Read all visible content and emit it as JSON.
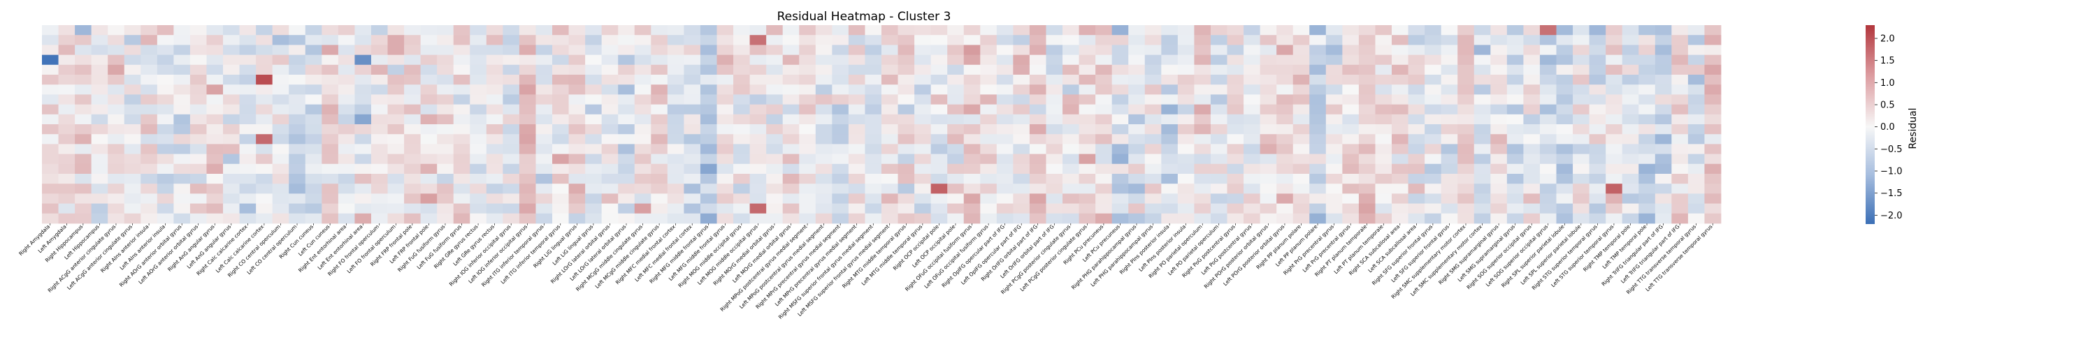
{
  "chart_data": {
    "type": "heatmap",
    "title": "Residual Heatmap - Cluster 3",
    "colormap": "diverging-blue-white-red",
    "colors": {
      "negative": "#3b6fb6",
      "neutral": "#f7f7f7",
      "positive": "#b2363c"
    },
    "value_range": [
      -2.2,
      2.3
    ],
    "colorbar": {
      "label": "Residual",
      "ticks": [
        "2.0",
        "1.5",
        "1.0",
        "0.5",
        "0.0",
        "−0.5",
        "−1.0",
        "−1.5",
        "−2.0"
      ],
      "tick_values": [
        2.0,
        1.5,
        1.0,
        0.5,
        0.0,
        -0.5,
        -1.0,
        -1.5,
        -2.0
      ],
      "placement": "right"
    },
    "n_rows": 20,
    "x_labels": [
      "Right Amygdala",
      "Left Amygdala",
      "Right Hippocampus",
      "Left Hippocampus",
      "Right ACgG anterior cingulate gyrus",
      "Left ACgG anterior cingulate gyrus",
      "Right AIns anterior insula",
      "Left AIns anterior insula",
      "Right AOrG anterior orbital gyrus",
      "Left AOrG anterior orbital gyrus",
      "Right AnG angular gyrus",
      "Left AnG angular gyrus",
      "Right Calc calcarine cortex",
      "Left Calc calcarine cortex",
      "Right CO central operculum",
      "Left CO central operculum",
      "Right Cun cuneus",
      "Left Cun cuneus",
      "Right Ent entorhinal area",
      "Left Ent entorhinal area",
      "Right FO frontal operculum",
      "Left FO frontal operculum",
      "Right FRP frontal pole",
      "Left FRP frontal pole",
      "Right FuG fusiform gyrus",
      "Left FuG fusiform gyrus",
      "Right GRe gyrus rectus",
      "Left GRe gyrus rectus",
      "Right IOG inferior occipital gyrus",
      "Left IOG inferior occipital gyrus",
      "Right ITG inferior temporal gyrus",
      "Left ITG inferior temporal gyrus",
      "Right LiG lingual gyrus",
      "Left LiG lingual gyrus",
      "Right LOrG lateral orbital gyrus",
      "Left LOrG lateral orbital gyrus",
      "Right MCgG middle cingulate gyrus",
      "Left MCgG middle cingulate gyrus",
      "Right MFC medial frontal cortex",
      "Left MFC medial frontal cortex",
      "Right MFG middle frontal gyrus",
      "Left MFG middle frontal gyrus",
      "Right MOG middle occipital gyrus",
      "Left MOG middle occipital gyrus",
      "Right MOrG medial orbital gyrus",
      "Left MOrG medial orbital gyrus",
      "Right MPoG postcentral gyrus medial segment",
      "Left MPoG postcentral gyrus medial segment",
      "Right MPrG precentral gyrus medial segment",
      "Left MPrG precentral gyrus medial segment",
      "Right MSFG superior frontal gyrus medial segment",
      "Left MSFG superior frontal gyrus medial segment",
      "Right MTG middle temporal gyrus",
      "Left MTG middle temporal gyrus",
      "Right OCP occipital pole",
      "Left OCP occipital pole",
      "Right OFuG occipital fusiform gyrus",
      "Left OFuG occipital fusiform gyrus",
      "Right OpIFG opercular part of IFG",
      "Left OpIFG opercular part of IFG",
      "Right OrIFG orbital part of IFG",
      "Left OrIFG orbital part of IFG",
      "Right PCgG posterior cingulate gyrus",
      "Left PCgG posterior cingulate gyrus",
      "Right PCu precuneus",
      "Left PCu precuneus",
      "Right PHG parahippocampal gyrus",
      "Left PHG parahippocampal gyrus",
      "Right PIns posterior insula",
      "Left PIns posterior insula",
      "Right PO parietal operculum",
      "Left PO parietal operculum",
      "Right PoG postcentral gyrus",
      "Left PoG postcentral gyrus",
      "Right POrG posterior orbital gyrus",
      "Left POrG posterior orbital gyrus",
      "Right PP planum polare",
      "Left PP planum polare",
      "Right PrG precentral gyrus",
      "Left PrG precentral gyrus",
      "Right PT planum temporale",
      "Left PT planum temporale",
      "Right SCA subcallosal area",
      "Left SCA subcallosal area",
      "Right SFG superior frontal gyrus",
      "Left SFG superior frontal gyrus",
      "Right SMC supplementary motor cortex",
      "Left SMC supplementary motor cortex",
      "Right SMG supramarginal gyrus",
      "Left SMG supramarginal gyrus",
      "Right SOG superior occipital gyrus",
      "Left SOG superior occipital gyrus",
      "Right SPL superior parietal lobule",
      "Left SPL superior parietal lobule",
      "Right STG superior temporal gyrus",
      "Left STG superior temporal gyrus",
      "Right TMP temporal pole",
      "Left TMP temporal pole",
      "Right TrIFG triangular part of IFG",
      "Left TrIFG triangular part of IFG",
      "Right TTG transverse temporal gyrus",
      "Left TTG transverse temporal gyrus"
    ],
    "notable_cells": [
      {
        "row": 3,
        "label": "Right Amygdala",
        "value": -2.1
      },
      {
        "row": 0,
        "label": "Right Hippocampus",
        "value": -0.9
      },
      {
        "row": 3,
        "label": "Left Ent entorhinal area",
        "value": -1.6
      },
      {
        "row": 9,
        "label": "Left Ent entorhinal area",
        "value": -1.2
      },
      {
        "row": 5,
        "label": "Left Calc calcarine cortex",
        "value": 2.0
      },
      {
        "row": 11,
        "label": "Left Calc calcarine cortex",
        "value": 1.6
      },
      {
        "row": 1,
        "label": "Left MOG middle occipital gyrus",
        "value": 1.5
      },
      {
        "row": 18,
        "label": "Left MOG middle occipital gyrus",
        "value": 1.6
      },
      {
        "row": 16,
        "label": "Right OCP occipital pole",
        "value": 1.7
      },
      {
        "row": 0,
        "label": "Left SOG superior occipital gyrus",
        "value": 1.5
      },
      {
        "row": 16,
        "label": "Left STG superior temporal gyrus",
        "value": 1.7
      }
    ]
  }
}
